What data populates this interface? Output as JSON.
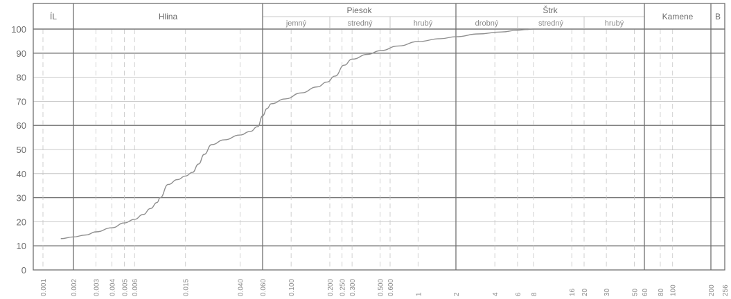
{
  "chart_data": {
    "type": "line",
    "title": "",
    "xlabel": "",
    "ylabel": "",
    "x_scale": "log",
    "ylim": [
      0,
      100
    ],
    "y_ticks": [
      0,
      10,
      20,
      30,
      40,
      50,
      60,
      70,
      80,
      90,
      100
    ],
    "x_ticks": [
      {
        "value": 0.001,
        "label": "0.001"
      },
      {
        "value": 0.002,
        "label": "0.002"
      },
      {
        "value": 0.003,
        "label": "0.003"
      },
      {
        "value": 0.004,
        "label": "0.004"
      },
      {
        "value": 0.005,
        "label": "0.005"
      },
      {
        "value": 0.006,
        "label": "0.006"
      },
      {
        "value": 0.015,
        "label": "0.015"
      },
      {
        "value": 0.04,
        "label": "0.040"
      },
      {
        "value": 0.06,
        "label": "0.060"
      },
      {
        "value": 0.1,
        "label": "0.100"
      },
      {
        "value": 0.2,
        "label": "0.200"
      },
      {
        "value": 0.25,
        "label": "0.250"
      },
      {
        "value": 0.3,
        "label": "0.300"
      },
      {
        "value": 0.5,
        "label": "0.500"
      },
      {
        "value": 0.6,
        "label": "0.600"
      },
      {
        "value": 1,
        "label": "1"
      },
      {
        "value": 2,
        "label": "2"
      },
      {
        "value": 4,
        "label": "4"
      },
      {
        "value": 6,
        "label": "6"
      },
      {
        "value": 8,
        "label": "8"
      },
      {
        "value": 16,
        "label": "16"
      },
      {
        "value": 20,
        "label": "20"
      },
      {
        "value": 30,
        "label": "30"
      },
      {
        "value": 50,
        "label": "50"
      },
      {
        "value": 60,
        "label": "60"
      },
      {
        "value": 80,
        "label": "80"
      },
      {
        "value": 100,
        "label": "100"
      },
      {
        "value": 200,
        "label": "200"
      },
      {
        "value": 256,
        "label": "256"
      }
    ],
    "major_v_lines": [
      0.002,
      0.06,
      2,
      60,
      200
    ],
    "bands": [
      {
        "label": "ÍL",
        "from": 0.001,
        "to": 0.002
      },
      {
        "label": "Hlina",
        "from": 0.002,
        "to": 0.06
      },
      {
        "label": "Piesok",
        "from": 0.06,
        "to": 2
      },
      {
        "label": "Štrk",
        "from": 2,
        "to": 60
      },
      {
        "label": "Kamene",
        "from": 60,
        "to": 200
      },
      {
        "label": "B",
        "from": 200,
        "to": 256
      }
    ],
    "sub_bands": [
      {
        "label": "jemný",
        "from": 0.06,
        "to": 0.2
      },
      {
        "label": "stredný",
        "from": 0.2,
        "to": 0.6
      },
      {
        "label": "hrubý",
        "from": 0.6,
        "to": 2
      },
      {
        "label": "drobný",
        "from": 2,
        "to": 6
      },
      {
        "label": "stredný",
        "from": 6,
        "to": 20
      },
      {
        "label": "hrubý",
        "from": 20,
        "to": 60
      }
    ],
    "sub_band_dividers": [
      0.2,
      0.6,
      6,
      20
    ],
    "series": [
      {
        "x": [
          0.0015,
          0.002,
          0.0025,
          0.003,
          0.004,
          0.005,
          0.006,
          0.007,
          0.008,
          0.009,
          0.0095,
          0.011,
          0.013,
          0.015,
          0.017,
          0.019,
          0.021,
          0.024,
          0.03,
          0.04,
          0.048,
          0.055,
          0.06,
          0.065,
          0.07,
          0.09,
          0.12,
          0.16,
          0.19,
          0.22,
          0.26,
          0.3,
          0.4,
          0.5,
          0.7,
          1.0,
          1.5,
          2.0,
          3.0,
          4.5,
          6.0,
          7.0,
          8.0,
          10.0
        ],
        "y": [
          13,
          13.7,
          14.5,
          15.8,
          17.5,
          19.5,
          21,
          23,
          25.5,
          28,
          30,
          35.5,
          37.5,
          39,
          40.5,
          44,
          48,
          52,
          54,
          56,
          57.5,
          59.5,
          64,
          67,
          69,
          71,
          73.5,
          76,
          78,
          80.5,
          85,
          87.5,
          89.5,
          91,
          93,
          94.8,
          96,
          96.8,
          98,
          98.8,
          99.5,
          99.8,
          100,
          100
        ]
      }
    ]
  }
}
